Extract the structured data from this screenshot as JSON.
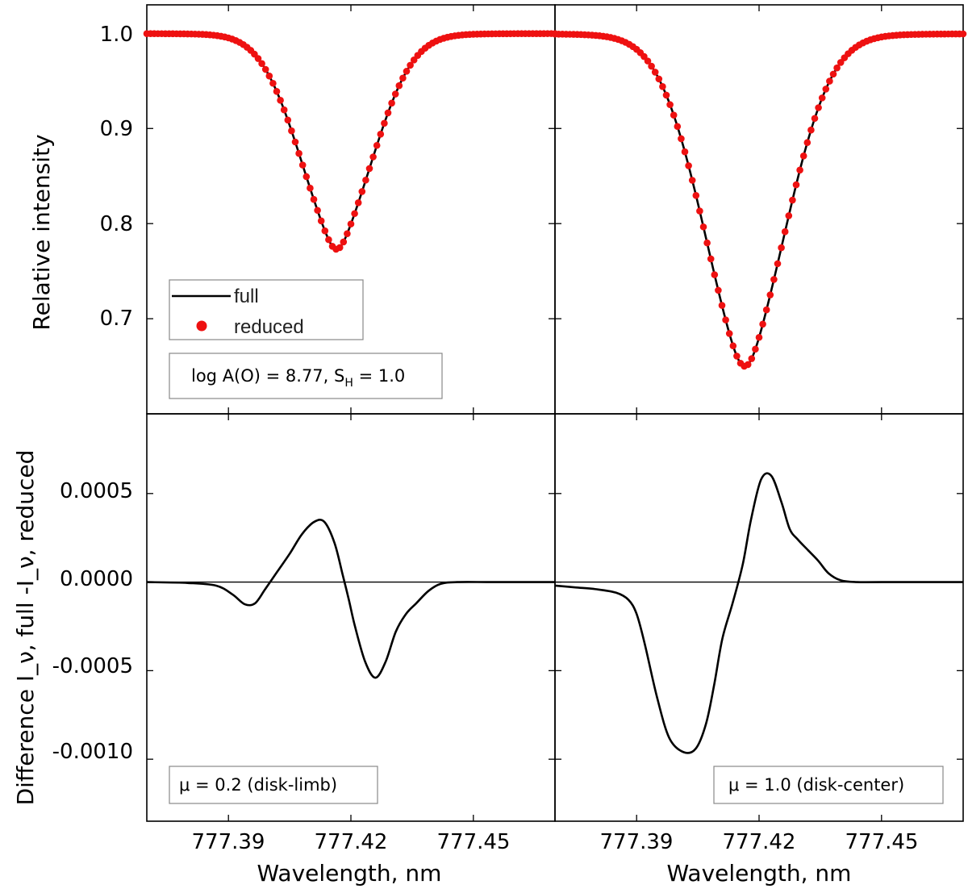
{
  "chart_data": [
    {
      "id": "top-left",
      "type": "line+scatter",
      "ylabel": "Relative intensity",
      "ylim": [
        0.6,
        1.03
      ],
      "yticks": [
        "1.0",
        "0.9",
        "0.8",
        "0.7"
      ],
      "xlim": [
        777.37,
        777.47
      ],
      "legend": [
        {
          "label": "full",
          "style": "line",
          "color": "#000000"
        },
        {
          "label": "reduced",
          "style": "marker",
          "color": "#ee1111"
        }
      ],
      "annotation": "log A(O) = 8.77, S_H = 1.0",
      "profile": {
        "center": 777.4165,
        "depth": 0.227,
        "sigma": 0.0095,
        "gamma": 0.0042
      },
      "series": [
        {
          "name": "full",
          "kind": "line"
        },
        {
          "name": "reduced",
          "kind": "marker"
        }
      ]
    },
    {
      "id": "top-right",
      "type": "line+scatter",
      "ylim": [
        0.6,
        1.03
      ],
      "xlim": [
        777.37,
        777.47
      ],
      "profile": {
        "center": 777.4165,
        "depth": 0.35,
        "sigma": 0.0108,
        "gamma": 0.0055
      },
      "series": [
        {
          "name": "full",
          "kind": "line"
        },
        {
          "name": "reduced",
          "kind": "marker"
        }
      ]
    },
    {
      "id": "bottom-left",
      "type": "line",
      "ylabel": "Difference I_ν, full -I_ν, reduced",
      "xlabel": "Wavelength, nm",
      "ylim": [
        -0.00135,
        0.00095
      ],
      "yticks": [
        "0.0005",
        "0.0000",
        "-0.0005",
        "-0.0010"
      ],
      "xlim": [
        777.37,
        777.47
      ],
      "xticks": [
        "777.39",
        "777.42",
        "777.45"
      ],
      "annotation": "μ = 0.2 (disk-limb)",
      "series": [
        {
          "name": "difference",
          "x": [
            777.37,
            777.38,
            777.387,
            777.391,
            777.394,
            777.3965,
            777.399,
            777.402,
            777.405,
            777.408,
            777.411,
            777.4135,
            777.416,
            777.418,
            777.4195,
            777.421,
            777.4235,
            777.426,
            777.4285,
            777.431,
            777.4335,
            777.436,
            777.439,
            777.442,
            777.446,
            777.455,
            777.47
          ],
          "y": [
            0.0,
            -5e-06,
            -2e-05,
            -7e-05,
            -0.000125,
            -0.00012,
            -4e-05,
            6e-05,
            0.00016,
            0.00027,
            0.00034,
            0.00034,
            0.00022,
            4e-05,
            -0.0001,
            -0.00025,
            -0.00045,
            -0.00054,
            -0.00045,
            -0.00028,
            -0.00018,
            -0.00012,
            -5e-05,
            -1e-05,
            0.0,
            0.0,
            0.0
          ]
        }
      ]
    },
    {
      "id": "bottom-right",
      "type": "line",
      "xlabel": "Wavelength, nm",
      "ylim": [
        -0.00135,
        0.00095
      ],
      "xlim": [
        777.37,
        777.47
      ],
      "xticks": [
        "777.39",
        "777.42",
        "777.45"
      ],
      "annotation": "μ = 1.0 (disk-center)",
      "series": [
        {
          "name": "difference",
          "x": [
            777.37,
            777.375,
            777.38,
            777.385,
            777.388,
            777.39,
            777.392,
            777.395,
            777.398,
            777.4015,
            777.4045,
            777.407,
            777.409,
            777.411,
            777.4135,
            777.416,
            777.418,
            777.4205,
            777.423,
            777.4255,
            777.4275,
            777.4295,
            777.432,
            777.4345,
            777.437,
            777.44,
            777.444,
            777.45,
            777.47
          ],
          "y": [
            -2e-05,
            -3e-05,
            -4e-05,
            -6e-05,
            -0.0001,
            -0.00018,
            -0.00035,
            -0.00065,
            -0.00088,
            -0.00096,
            -0.00094,
            -0.0008,
            -0.00058,
            -0.00032,
            -0.00012,
            0.0001,
            0.00035,
            0.00058,
            0.0006,
            0.00045,
            0.0003,
            0.00024,
            0.00018,
            0.00012,
            5e-05,
            1e-05,
            0.0,
            0.0,
            0.0
          ]
        }
      ]
    }
  ]
}
